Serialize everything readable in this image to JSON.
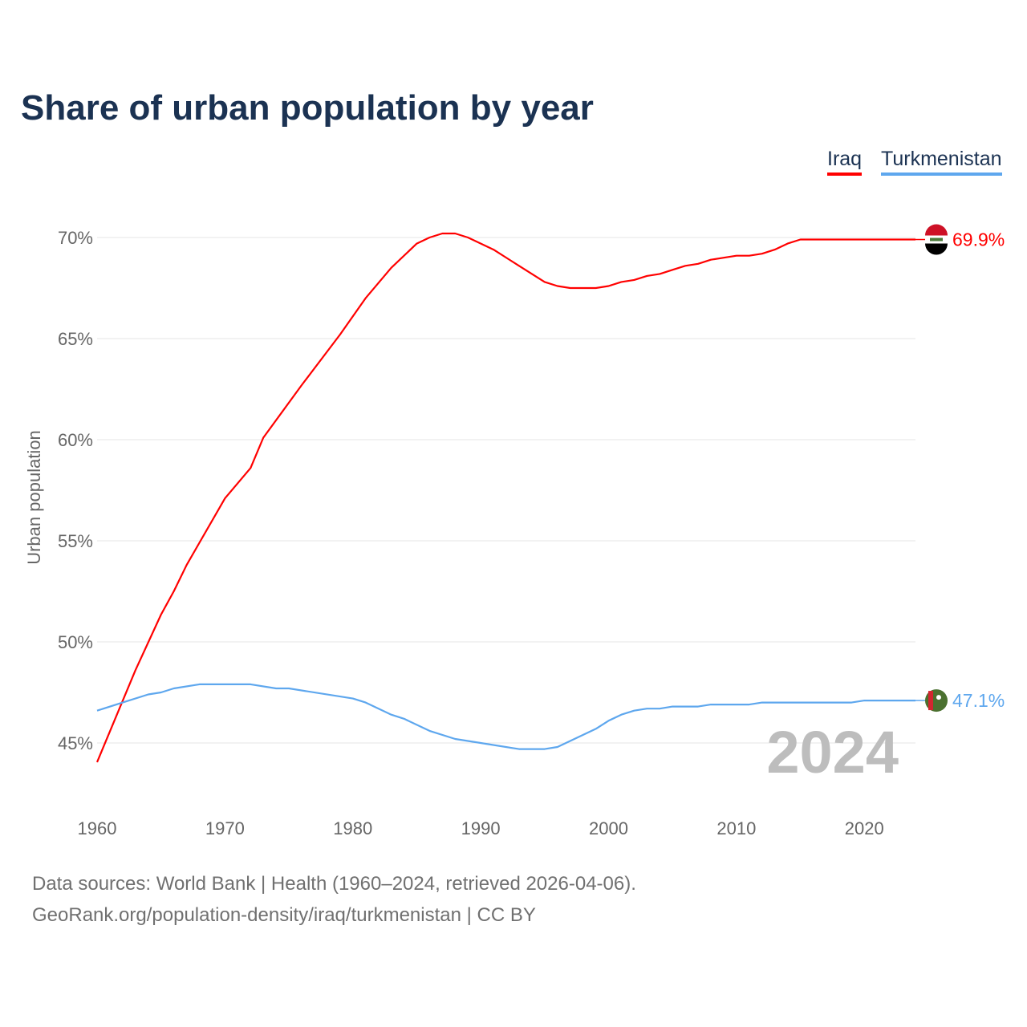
{
  "chart_data": {
    "type": "line",
    "title": "Share of urban population by year",
    "ylabel": "Urban population",
    "xlabel": "",
    "xlim": [
      1960,
      2024
    ],
    "ylim": [
      43.3,
      71.5
    ],
    "x_ticks": [
      1960,
      1970,
      1980,
      1990,
      2000,
      2010,
      2020
    ],
    "y_ticks": [
      45,
      50,
      55,
      60,
      65,
      70
    ],
    "y_tick_labels": [
      "45%",
      "50%",
      "55%",
      "60%",
      "65%",
      "70%"
    ],
    "grid": true,
    "legend_position": "top-right",
    "year_watermark": "2024",
    "series": [
      {
        "name": "Iraq",
        "color": "#ff0000",
        "end_label": "69.9%",
        "flag": "iraq-flag",
        "points": [
          [
            1960,
            44.05
          ],
          [
            1963,
            48.6
          ],
          [
            1965,
            51.35
          ],
          [
            1966,
            52.5
          ],
          [
            1967,
            53.8
          ],
          [
            1968,
            54.9
          ],
          [
            1970,
            57.1
          ],
          [
            1972,
            58.6
          ],
          [
            1973,
            60.1
          ],
          [
            1976,
            62.7
          ],
          [
            1979,
            65.2
          ],
          [
            1981,
            67.0
          ],
          [
            1983,
            68.5
          ],
          [
            1985,
            69.7
          ],
          [
            1986,
            70.0
          ],
          [
            1987,
            70.2
          ],
          [
            1988,
            70.2
          ],
          [
            1989,
            70.0
          ],
          [
            1991,
            69.4
          ],
          [
            1993,
            68.6
          ],
          [
            1995,
            67.8
          ],
          [
            1996,
            67.6
          ],
          [
            1997,
            67.5
          ],
          [
            1999,
            67.5
          ],
          [
            2000,
            67.6
          ],
          [
            2001,
            67.8
          ],
          [
            2002,
            67.9
          ],
          [
            2003,
            68.1
          ],
          [
            2004,
            68.2
          ],
          [
            2005,
            68.4
          ],
          [
            2006,
            68.6
          ],
          [
            2007,
            68.7
          ],
          [
            2008,
            68.9
          ],
          [
            2010,
            69.1
          ],
          [
            2011,
            69.1
          ],
          [
            2012,
            69.2
          ],
          [
            2013,
            69.4
          ],
          [
            2014,
            69.7
          ],
          [
            2015,
            69.9
          ],
          [
            2024,
            69.9
          ]
        ]
      },
      {
        "name": "Turkmenistan",
        "color": "#5ea7ee",
        "end_label": "47.1%",
        "flag": "turkmenistan-flag",
        "points": [
          [
            1960,
            46.6
          ],
          [
            1962,
            47.0
          ],
          [
            1964,
            47.4
          ],
          [
            1965,
            47.5
          ],
          [
            1966,
            47.7
          ],
          [
            1968,
            47.9
          ],
          [
            1972,
            47.9
          ],
          [
            1974,
            47.7
          ],
          [
            1975,
            47.7
          ],
          [
            1980,
            47.2
          ],
          [
            1981,
            47.0
          ],
          [
            1983,
            46.4
          ],
          [
            1984,
            46.2
          ],
          [
            1986,
            45.6
          ],
          [
            1988,
            45.2
          ],
          [
            1990,
            45.0
          ],
          [
            1993,
            44.7
          ],
          [
            1995,
            44.7
          ],
          [
            1996,
            44.8
          ],
          [
            1999,
            45.7
          ],
          [
            2000,
            46.1
          ],
          [
            2001,
            46.4
          ],
          [
            2002,
            46.6
          ],
          [
            2003,
            46.7
          ],
          [
            2004,
            46.7
          ],
          [
            2005,
            46.8
          ],
          [
            2007,
            46.8
          ],
          [
            2008,
            46.9
          ],
          [
            2011,
            46.9
          ],
          [
            2012,
            47.0
          ],
          [
            2019,
            47.0
          ],
          [
            2020,
            47.1
          ],
          [
            2024,
            47.1
          ]
        ]
      }
    ]
  },
  "legend": {
    "iraq": "Iraq",
    "turkmenistan": "Turkmenistan"
  },
  "footer": {
    "sources": "Data sources: World Bank | Health (1960–2024, retrieved 2026-04-06).",
    "url": "GeoRank.org/population-density/iraq/turkmenistan | CC BY"
  }
}
